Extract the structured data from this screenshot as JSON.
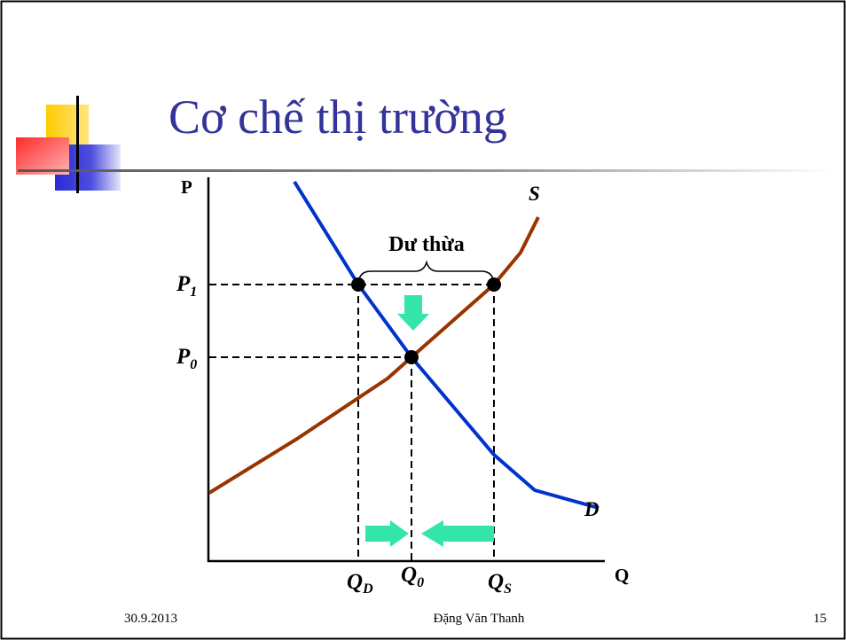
{
  "slide": {
    "title": "Cơ chế thị trường"
  },
  "diagram": {
    "axis_p": "P",
    "axis_q": "Q",
    "supply_label": "S",
    "demand_label": "D",
    "surplus_label": "Dư thừa",
    "p1": {
      "main": "P",
      "sub": "1"
    },
    "p0": {
      "main": "P",
      "sub": "0"
    },
    "qd": {
      "main": "Q",
      "sub": "D"
    },
    "q0": {
      "main": "Q",
      "sub": "0"
    },
    "qs": {
      "main": "Q",
      "sub": "S"
    },
    "colors": {
      "demand": "#0033cc",
      "supply": "#993300",
      "arrows": "#33e6a8",
      "title": "#333399"
    }
  },
  "footer": {
    "date": "30.9.2013",
    "author": "Đặng Văn Thanh",
    "page": "15"
  }
}
